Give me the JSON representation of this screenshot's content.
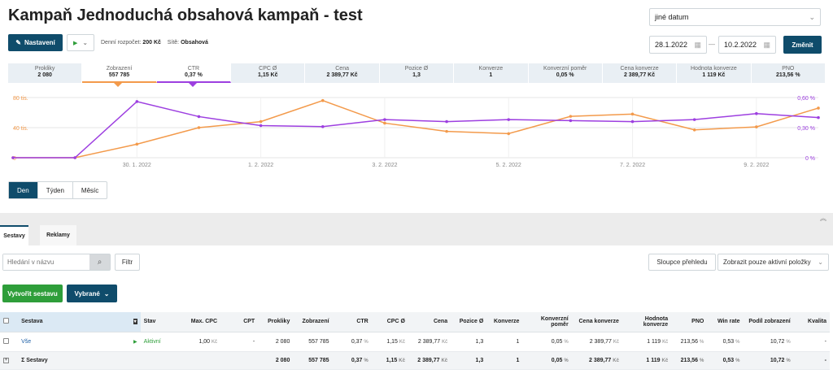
{
  "header": {
    "title": "Kampaň Jednoduchá obsahová kampaň - test",
    "settings_label": "Nastavení",
    "budget_label": "Denní rozpočet:",
    "budget_value": "200 Kč",
    "networks_label": "Sítě:",
    "networks_value": "Obsahová"
  },
  "date": {
    "preset": "jiné datum",
    "from": "28.1.2022",
    "to": "10.2.2022",
    "separator": "—",
    "change_label": "Změnit"
  },
  "metrics": [
    {
      "label": "Prokliky",
      "value": "2 080"
    },
    {
      "label": "Zobrazení",
      "value": "557 785"
    },
    {
      "label": "CTR",
      "value": "0,37 %"
    },
    {
      "label": "CPC Ø",
      "value": "1,15 Kč"
    },
    {
      "label": "Cena",
      "value": "2 389,77 Kč"
    },
    {
      "label": "Pozice Ø",
      "value": "1,3"
    },
    {
      "label": "Konverze",
      "value": "1"
    },
    {
      "label": "Konverzní poměr",
      "value": "0,05 %"
    },
    {
      "label": "Cena konverze",
      "value": "2 389,77 Kč"
    },
    {
      "label": "Hodnota konverze",
      "value": "1 119 Kč"
    },
    {
      "label": "PNO",
      "value": "213,56 %"
    }
  ],
  "chart_data": {
    "type": "line",
    "x": [
      "28. 1. 2022",
      "29. 1. 2022",
      "30. 1. 2022",
      "31. 1. 2022",
      "1. 2. 2022",
      "2. 2. 2022",
      "3. 2. 2022",
      "4. 2. 2022",
      "5. 2. 2022",
      "6. 2. 2022",
      "7. 2. 2022",
      "8. 2. 2022",
      "9. 2. 2022",
      "10. 2. 2022"
    ],
    "x_tick_labels": [
      "30. 1. 2022",
      "1. 2. 2022",
      "3. 2. 2022",
      "5. 2. 2022",
      "7. 2. 2022",
      "9. 2. 2022"
    ],
    "left_axis_ticks": [
      "80 tis.",
      "40 tis.",
      "0"
    ],
    "right_axis_ticks": [
      "0,60 %",
      "0,30 %",
      "0 %"
    ],
    "left_ylim": [
      0,
      80000
    ],
    "right_ylim": [
      0,
      0.6
    ],
    "series": [
      {
        "name": "Zobrazení",
        "axis": "left",
        "color": "#f39a4b",
        "values": [
          0,
          0,
          18000,
          40000,
          48000,
          76000,
          46000,
          35000,
          32000,
          55000,
          58000,
          37000,
          41000,
          66000
        ]
      },
      {
        "name": "CTR",
        "axis": "right",
        "color": "#9d3fe0",
        "values": [
          0,
          0,
          0.56,
          0.41,
          0.32,
          0.31,
          0.38,
          0.36,
          0.38,
          0.37,
          0.36,
          0.38,
          0.44,
          0.4
        ]
      }
    ],
    "grid": true
  },
  "periods": [
    "Den",
    "Týden",
    "Měsíc"
  ],
  "tabs": [
    "Sestavy",
    "Reklamy"
  ],
  "filters": {
    "search_placeholder": "Hledání v názvu",
    "filter_label": "Filtr",
    "columns_label": "Sloupce přehledu",
    "active_only_label": "Zobrazit pouze aktivní položky"
  },
  "actions": {
    "create_label": "Vytvořit sestavu",
    "selected_label": "Vybrané"
  },
  "table": {
    "headers": [
      "Sestava",
      "Stav",
      "Max. CPC",
      "CPT",
      "Prokliky",
      "Zobrazení",
      "CTR",
      "CPC Ø",
      "Cena",
      "Pozice Ø",
      "Konverze",
      "Konverzní poměr",
      "Cena konverze",
      "Hodnota konverze",
      "PNO",
      "Win rate",
      "Podíl zobrazení",
      "Kvalita"
    ],
    "row": {
      "name": "Vše",
      "status": "Aktivní",
      "max_cpc": "1,00",
      "cpt": "-",
      "clicks": "2 080",
      "impressions": "557 785",
      "ctr": "0,37",
      "cpc": "1,15",
      "cost": "2 389,77",
      "position": "1,3",
      "conversions": "1",
      "conv_rate": "0,05",
      "conv_cost": "2 389,77",
      "conv_value": "1 119",
      "pno": "213,56",
      "win_rate": "0,53",
      "imp_share": "10,72",
      "quality": "-"
    },
    "sum": {
      "name": "Σ Sestavy",
      "clicks": "2 080",
      "impressions": "557 785",
      "ctr": "0,37",
      "cpc": "1,15",
      "cost": "2 389,77",
      "position": "1,3",
      "conversions": "1",
      "conv_rate": "0,05",
      "conv_cost": "2 389,77",
      "conv_value": "1 119",
      "pno": "213,56",
      "win_rate": "0,53",
      "imp_share": "10,72",
      "quality": "-"
    },
    "unit_kc": "Kč",
    "unit_pct": "%"
  }
}
